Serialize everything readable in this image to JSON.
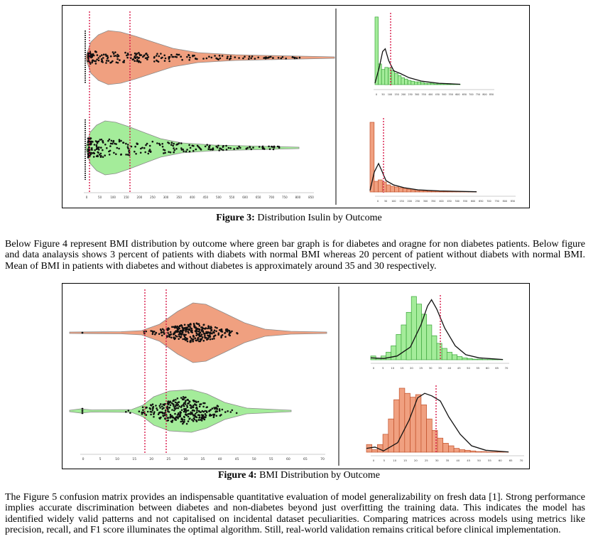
{
  "figure3": {
    "caption_label": "Figure 3:",
    "caption_text": " Distribution Isulin by Outcome",
    "violin_ticks": [
      "0",
      "50",
      "100",
      "150",
      "200",
      "250",
      "300",
      "350",
      "400",
      "450",
      "500",
      "550",
      "600",
      "650",
      "700",
      "750",
      "800",
      "850"
    ],
    "hist_top_ticks": [
      "0",
      "50",
      "100",
      "150",
      "200",
      "250",
      "300",
      "350",
      "400",
      "450",
      "500",
      "550",
      "600",
      "650",
      "700",
      "750",
      "800",
      "850"
    ],
    "hist_bottom_ticks": [
      "0",
      "50",
      "100",
      "150",
      "200",
      "250",
      "300",
      "350",
      "400",
      "450",
      "500",
      "550",
      "600",
      "650",
      "700",
      "750",
      "800",
      "850"
    ],
    "colors": {
      "non_diabetes": "#f0a080",
      "diabetes": "#a4ec9a",
      "mean_line": "#d81b4a"
    },
    "chart_data": {
      "type": "violin+histogram",
      "title": "",
      "xlim": [
        0,
        850
      ],
      "panels": [
        {
          "type": "violin",
          "row": "top",
          "color": "#f0a080",
          "mean_lines": [
            0,
            120
          ],
          "spread": [
            0,
            650
          ]
        },
        {
          "type": "violin",
          "row": "bottom",
          "color": "#a4ec9a",
          "mean_lines": [
            0,
            120
          ],
          "spread": [
            0,
            550
          ]
        },
        {
          "type": "bar",
          "row": "top",
          "color": "#a4ec9a",
          "bins": [
            0,
            20,
            40,
            60,
            80,
            100,
            120,
            140,
            160,
            180,
            200,
            220,
            240,
            260,
            280,
            300,
            320,
            340,
            360,
            380,
            400,
            420,
            440,
            460,
            480,
            500
          ],
          "relative_heights": [
            0.98,
            0.3,
            0.22,
            0.25,
            0.24,
            0.2,
            0.16,
            0.13,
            0.1,
            0.08,
            0.06,
            0.05,
            0.04,
            0.04,
            0.03,
            0.02,
            0.02,
            0.02,
            0.01,
            0.01,
            0.01,
            0.01,
            0.005,
            0.005,
            0.005,
            0.004
          ]
        },
        {
          "type": "bar",
          "row": "bottom",
          "color": "#f0a080",
          "bins": [
            0,
            20,
            40,
            60,
            80,
            100,
            120,
            140,
            160,
            180,
            200,
            220,
            240,
            260,
            280,
            300,
            320,
            340,
            360,
            380,
            400,
            420,
            440,
            460,
            480,
            500
          ],
          "relative_heights": [
            0.98,
            0.15,
            0.17,
            0.14,
            0.1,
            0.08,
            0.07,
            0.06,
            0.05,
            0.04,
            0.03,
            0.02,
            0.02,
            0.015,
            0.01,
            0.01,
            0.01,
            0.008,
            0.006,
            0.005,
            0.004,
            0.004,
            0.003,
            0.003,
            0.002,
            0.002
          ]
        }
      ]
    }
  },
  "paragraph1": "Below Figure 4 represent BMI distribution by outcome where green bar graph is for diabetes and oragne for non diabetes patients. Below figure and data analaysis shows 3 percent of patients with diabets with normal BMI whereas 20 percent of patient without diabets with normal BMI. Mean of BMI in patients with diabetes and without diabetes is approximately around 35 and 30 respectively.",
  "figure4": {
    "caption_label": "Figure 4:",
    "caption_text": " BMI Distribution by Outcome",
    "violin_ticks": [
      "0",
      "5",
      "10",
      "15",
      "20",
      "25",
      "30",
      "35",
      "40",
      "45",
      "50",
      "55",
      "60",
      "65",
      "70"
    ],
    "hist_top_ticks": [
      "0",
      "5",
      "10",
      "15",
      "20",
      "25",
      "30",
      "35",
      "40",
      "45",
      "50",
      "55",
      "60",
      "65",
      "70"
    ],
    "hist_bottom_ticks": [
      "0",
      "5",
      "10",
      "15",
      "20",
      "25",
      "30",
      "35",
      "40",
      "45",
      "50",
      "55",
      "60",
      "65",
      "70"
    ],
    "colors": {
      "non_diabetes": "#f0a080",
      "diabetes": "#a4ec9a",
      "mean_line": "#d81b4a"
    },
    "chart_data": {
      "type": "violin+histogram",
      "title": "",
      "xlim": [
        0,
        70
      ],
      "panels": [
        {
          "type": "violin",
          "row": "top",
          "color": "#f0a080",
          "mean_lines": [
            18.5,
            25
          ],
          "spread": [
            0,
            67
          ]
        },
        {
          "type": "violin",
          "row": "bottom",
          "color": "#a4ec9a",
          "mean_lines": [
            18.5,
            25
          ],
          "spread": [
            0,
            57
          ]
        },
        {
          "type": "bar",
          "row": "top",
          "color": "#a4ec9a",
          "bins": [
            0,
            20,
            22,
            24,
            26,
            28,
            30,
            32,
            34,
            36,
            38,
            40,
            42,
            44,
            46,
            48,
            50,
            52,
            54,
            56,
            58,
            60,
            62,
            64,
            66,
            68
          ],
          "relative_heights": [
            0.06,
            0.02,
            0.06,
            0.12,
            0.22,
            0.4,
            0.55,
            0.75,
            1.0,
            0.88,
            0.72,
            0.55,
            0.38,
            0.26,
            0.18,
            0.12,
            0.08,
            0.05,
            0.03,
            0.02,
            0.01,
            0.01,
            0.005,
            0.005,
            0.005,
            0.004
          ]
        },
        {
          "type": "bar",
          "row": "bottom",
          "color": "#f0a080",
          "bins": [
            0,
            18,
            20,
            22,
            24,
            26,
            28,
            30,
            32,
            34,
            36,
            38,
            40,
            42,
            44,
            46,
            48,
            50,
            52,
            54,
            56,
            58,
            60,
            62,
            64,
            66
          ],
          "relative_heights": [
            0.12,
            0.04,
            0.12,
            0.28,
            0.52,
            0.82,
            1.0,
            0.92,
            0.86,
            0.9,
            0.74,
            0.52,
            0.34,
            0.22,
            0.14,
            0.1,
            0.06,
            0.04,
            0.03,
            0.02,
            0.01,
            0.01,
            0.005,
            0.005,
            0.004,
            0.004
          ]
        }
      ]
    }
  },
  "paragraph2": "The Figure 5 confusion matrix provides an indispensable quantitative evaluation of model generalizability on fresh data [1]. Strong performance implies accurate discrimination between diabetes and non-diabetes beyond just overfitting the training data. This indicates the model has identified widely valid patterns and not capitalised on incidental dataset peculiarities. Comparing matrices across models using metrics like precision, recall, and F1 score illuminates the optimal algorithm. Still, real-world validation remains critical before clinical implementation."
}
